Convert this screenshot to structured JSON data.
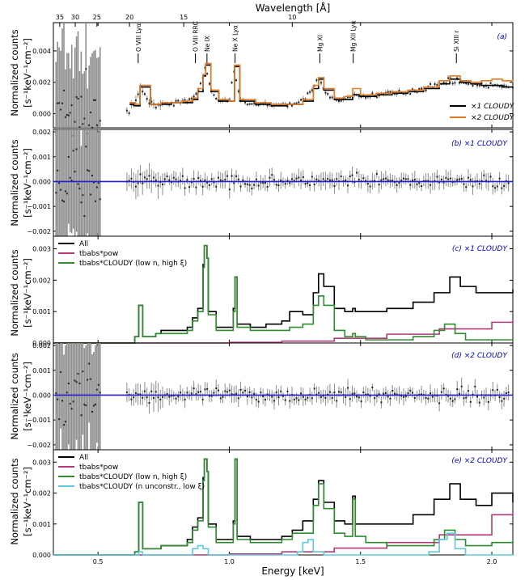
{
  "figure": {
    "top_axis_title": "Wavelength [Å]",
    "bottom_axis_title": "Energy [keV]",
    "y_axis_label_line1": "Normalized counts",
    "y_axis_label_line2": "[s⁻¹keV⁻¹cm⁻²]"
  },
  "colors": {
    "data": "#222222",
    "errorbar": "#8c8c8c",
    "model_x1": "#000000",
    "model_x2": "#e07b28",
    "zero_line": "#1f1fd6",
    "all": "#000000",
    "powerlaw": "#b23a7a",
    "cloudy_high": "#2e8b2e",
    "cloudy_low": "#5ec8de"
  },
  "chart_data": [
    {
      "panel": "a",
      "type": "line",
      "tag": "(a)",
      "xlim": [
        0.33,
        2.08
      ],
      "ylim": [
        -0.0009,
        0.0058
      ],
      "yticks": [
        0.0,
        0.002,
        0.004
      ],
      "ytick_labels": [
        "0.000",
        "0.002",
        "0.004"
      ],
      "top_axis": {
        "wavelength_ticks": [
          35,
          30,
          25,
          20,
          15,
          10
        ],
        "wavelength_labels": [
          "35",
          "30",
          "25",
          "20",
          "15",
          "10"
        ]
      },
      "line_ids": [
        {
          "label": "O VIII Lyα",
          "energy": 0.653
        },
        {
          "label": "O VIII RRC",
          "energy": 0.871
        },
        {
          "label": "Ne IX",
          "energy": 0.915
        },
        {
          "label": "Ne X Lyα",
          "energy": 1.022
        },
        {
          "label": "Mg XI",
          "energy": 1.345
        },
        {
          "label": "Mg XII Lyα",
          "energy": 1.472
        },
        {
          "label": "Si XIII r",
          "energy": 1.865
        }
      ],
      "legend": [
        {
          "label": "×1 CLOUDY",
          "color_key": "model_x1"
        },
        {
          "label": "×2 CLOUDY",
          "color_key": "model_x2"
        }
      ],
      "series": [
        {
          "name": "×1 CLOUDY",
          "x": [
            0.62,
            0.64,
            0.66,
            0.7,
            0.74,
            0.78,
            0.82,
            0.86,
            0.88,
            0.9,
            0.91,
            0.93,
            0.96,
            1.0,
            1.02,
            1.04,
            1.1,
            1.16,
            1.22,
            1.28,
            1.32,
            1.34,
            1.36,
            1.4,
            1.44,
            1.47,
            1.5,
            1.56,
            1.62,
            1.68,
            1.74,
            1.8,
            1.84,
            1.88,
            1.92,
            1.96,
            2.0,
            2.04,
            2.08
          ],
          "y": [
            0.0006,
            0.0005,
            0.0017,
            0.0006,
            0.0006,
            0.0007,
            0.0007,
            0.0009,
            0.0014,
            0.0024,
            0.0031,
            0.0014,
            0.0008,
            0.0008,
            0.003,
            0.0008,
            0.0006,
            0.0005,
            0.0006,
            0.0008,
            0.0016,
            0.0022,
            0.0015,
            0.0009,
            0.0009,
            0.0012,
            0.0011,
            0.0012,
            0.0013,
            0.0014,
            0.0016,
            0.0019,
            0.0022,
            0.002,
            0.0019,
            0.0018,
            0.0018,
            0.0017,
            0.0016
          ]
        },
        {
          "name": "×2 CLOUDY",
          "x": [
            0.62,
            0.64,
            0.66,
            0.7,
            0.74,
            0.78,
            0.82,
            0.86,
            0.88,
            0.9,
            0.91,
            0.93,
            0.96,
            1.0,
            1.02,
            1.04,
            1.1,
            1.16,
            1.22,
            1.28,
            1.32,
            1.34,
            1.36,
            1.4,
            1.44,
            1.47,
            1.5,
            1.56,
            1.62,
            1.68,
            1.74,
            1.8,
            1.84,
            1.88,
            1.92,
            1.96,
            2.0,
            2.04,
            2.08
          ],
          "y": [
            0.0007,
            0.0006,
            0.0018,
            0.0006,
            0.0007,
            0.0007,
            0.0008,
            0.001,
            0.0016,
            0.0025,
            0.0032,
            0.0015,
            0.0009,
            0.0008,
            0.0031,
            0.0009,
            0.0007,
            0.0006,
            0.0006,
            0.0009,
            0.0018,
            0.0023,
            0.0016,
            0.001,
            0.0011,
            0.0016,
            0.0012,
            0.0013,
            0.0014,
            0.0015,
            0.0017,
            0.0021,
            0.0024,
            0.0021,
            0.002,
            0.0021,
            0.0022,
            0.0021,
            0.002
          ]
        }
      ]
    },
    {
      "panel": "b",
      "type": "scatter",
      "tag": "(b) ×1 CLOUDY",
      "xlim": [
        0.33,
        2.08
      ],
      "ylim": [
        -0.0022,
        0.0021
      ],
      "yticks": [
        -0.002,
        -0.001,
        0.0,
        0.001,
        0.002
      ],
      "ytick_labels": [
        "−0.002",
        "−0.001",
        "0.000",
        "0.001",
        "0.002"
      ],
      "zero_line": true
    },
    {
      "panel": "c",
      "type": "line",
      "tag": "(c) ×1 CLOUDY",
      "xlim": [
        0.33,
        2.08
      ],
      "ylim": [
        0.0,
        0.0034
      ],
      "yticks": [
        0.0,
        0.001,
        0.002,
        0.003
      ],
      "ytick_labels": [
        "0.000",
        "0.001",
        "0.002",
        "0.003"
      ],
      "legend": [
        {
          "label": "All",
          "color_key": "all"
        },
        {
          "label": "tbabs*pow",
          "color_key": "powerlaw"
        },
        {
          "label": "tbabs*CLOUDY (low n, high ξ)",
          "color_key": "cloudy_high"
        }
      ],
      "series": [
        {
          "name": "All",
          "x": [
            0.33,
            0.6,
            0.64,
            0.655,
            0.67,
            0.72,
            0.74,
            0.8,
            0.84,
            0.86,
            0.88,
            0.9,
            0.905,
            0.915,
            0.92,
            0.95,
            1.0,
            1.015,
            1.022,
            1.03,
            1.08,
            1.14,
            1.2,
            1.23,
            1.28,
            1.32,
            1.34,
            1.36,
            1.4,
            1.44,
            1.47,
            1.48,
            1.52,
            1.6,
            1.7,
            1.78,
            1.84,
            1.88,
            1.94,
            2.0,
            2.08
          ],
          "y": [
            0.0,
            0.0,
            0.0002,
            0.0012,
            0.0002,
            0.0003,
            0.0004,
            0.0004,
            0.0005,
            0.0008,
            0.0011,
            0.0025,
            0.0031,
            0.0027,
            0.001,
            0.0005,
            0.0005,
            0.0011,
            0.0021,
            0.0006,
            0.0005,
            0.0006,
            0.0007,
            0.001,
            0.0009,
            0.0016,
            0.0022,
            0.0018,
            0.0011,
            0.001,
            0.0011,
            0.001,
            0.001,
            0.0011,
            0.0013,
            0.0016,
            0.0021,
            0.0018,
            0.0016,
            0.0016,
            0.0017
          ]
        },
        {
          "name": "tbabs*pow",
          "x": [
            0.33,
            0.6,
            0.8,
            1.0,
            1.2,
            1.4,
            1.6,
            1.8,
            2.0,
            2.08
          ],
          "y": [
            0.0,
            0.0,
            0.0,
            2e-05,
            6e-05,
            0.00015,
            0.00028,
            0.00045,
            0.00066,
            0.00075
          ]
        },
        {
          "name": "tbabs*CLOUDY (low n, high ξ)",
          "x": [
            0.33,
            0.6,
            0.64,
            0.655,
            0.67,
            0.72,
            0.74,
            0.8,
            0.84,
            0.86,
            0.88,
            0.9,
            0.905,
            0.915,
            0.92,
            0.95,
            1.0,
            1.015,
            1.022,
            1.03,
            1.08,
            1.14,
            1.2,
            1.23,
            1.28,
            1.32,
            1.34,
            1.36,
            1.4,
            1.44,
            1.47,
            1.48,
            1.52,
            1.6,
            1.7,
            1.78,
            1.82,
            1.86,
            1.9,
            2.0,
            2.08
          ],
          "y": [
            0.0,
            0.0,
            0.0002,
            0.0012,
            0.0002,
            0.0003,
            0.0003,
            0.0003,
            0.0004,
            0.0007,
            0.001,
            0.0024,
            0.0031,
            0.0027,
            0.0009,
            0.0004,
            0.0004,
            0.001,
            0.0021,
            0.0005,
            0.0004,
            0.0004,
            0.0004,
            0.0005,
            0.0006,
            0.0012,
            0.0015,
            0.0012,
            0.0004,
            0.0002,
            0.0003,
            0.0002,
            0.0001,
            0.0001,
            0.0002,
            0.0004,
            0.0006,
            0.0003,
            0.0001,
            0.0001,
            0.0001
          ]
        }
      ]
    },
    {
      "panel": "d",
      "type": "scatter",
      "tag": "(d) ×2 CLOUDY",
      "xlim": [
        0.33,
        2.08
      ],
      "ylim": [
        -0.0022,
        0.0021
      ],
      "yticks": [
        -0.002,
        -0.001,
        0.0,
        0.001,
        0.002
      ],
      "ytick_labels": [
        "−0.002",
        "−0.001",
        "0.000",
        "0.001",
        "0.002"
      ],
      "zero_line": true
    },
    {
      "panel": "e",
      "type": "line",
      "tag": "(e) ×2 CLOUDY",
      "xlim": [
        0.33,
        2.08
      ],
      "ylim": [
        0.0,
        0.0034
      ],
      "yticks": [
        0.0,
        0.001,
        0.002,
        0.003
      ],
      "ytick_labels": [
        "0.000",
        "0.001",
        "0.002",
        "0.003"
      ],
      "xticks": [
        0.5,
        1.0,
        1.5,
        2.0
      ],
      "xtick_labels": [
        "0.5",
        "1.0",
        "1.5",
        "2.0"
      ],
      "legend": [
        {
          "label": "All",
          "color_key": "all"
        },
        {
          "label": "tbabs*pow",
          "color_key": "powerlaw"
        },
        {
          "label": "tbabs*CLOUDY (low n, high ξ)",
          "color_key": "cloudy_high"
        },
        {
          "label": "tbabs*CLOUDY (n unconstr., low ξ)",
          "color_key": "cloudy_low"
        }
      ],
      "series": [
        {
          "name": "All",
          "x": [
            0.33,
            0.6,
            0.64,
            0.655,
            0.67,
            0.72,
            0.74,
            0.8,
            0.84,
            0.86,
            0.88,
            0.9,
            0.905,
            0.915,
            0.92,
            0.95,
            1.0,
            1.015,
            1.022,
            1.03,
            1.08,
            1.14,
            1.2,
            1.24,
            1.28,
            1.32,
            1.34,
            1.36,
            1.4,
            1.44,
            1.47,
            1.48,
            1.52,
            1.6,
            1.7,
            1.78,
            1.84,
            1.88,
            1.94,
            2.0,
            2.08
          ],
          "y": [
            0.0,
            0.0,
            0.0001,
            0.0017,
            0.0002,
            0.0002,
            0.0003,
            0.0003,
            0.0005,
            0.0009,
            0.0012,
            0.0025,
            0.0031,
            0.0027,
            0.001,
            0.0005,
            0.0005,
            0.0011,
            0.0031,
            0.0006,
            0.0005,
            0.0005,
            0.0006,
            0.0008,
            0.0011,
            0.0018,
            0.0024,
            0.0017,
            0.0011,
            0.001,
            0.0019,
            0.001,
            0.001,
            0.001,
            0.0013,
            0.0018,
            0.0023,
            0.0018,
            0.0016,
            0.002,
            0.0017
          ]
        },
        {
          "name": "tbabs*pow",
          "x": [
            0.33,
            0.6,
            0.8,
            1.0,
            1.2,
            1.4,
            1.6,
            1.8,
            2.0,
            2.08
          ],
          "y": [
            0.0,
            0.0,
            0.0,
            3e-05,
            0.0001,
            0.00022,
            0.0004,
            0.00065,
            0.0013,
            0.0014
          ]
        },
        {
          "name": "tbabs*CLOUDY (low n, high ξ)",
          "x": [
            0.33,
            0.6,
            0.64,
            0.655,
            0.67,
            0.72,
            0.74,
            0.8,
            0.84,
            0.86,
            0.88,
            0.9,
            0.905,
            0.915,
            0.92,
            0.95,
            1.0,
            1.015,
            1.022,
            1.03,
            1.08,
            1.14,
            1.2,
            1.24,
            1.28,
            1.32,
            1.34,
            1.36,
            1.4,
            1.44,
            1.47,
            1.48,
            1.52,
            1.6,
            1.7,
            1.78,
            1.82,
            1.86,
            1.9,
            2.0,
            2.08
          ],
          "y": [
            0.0,
            0.0,
            0.0001,
            0.0017,
            0.0002,
            0.0002,
            0.0003,
            0.0003,
            0.0004,
            0.0008,
            0.0011,
            0.0024,
            0.0031,
            0.0027,
            0.0009,
            0.0004,
            0.0004,
            0.001,
            0.0031,
            0.0005,
            0.0004,
            0.0004,
            0.0005,
            0.0007,
            0.0007,
            0.0016,
            0.0023,
            0.0015,
            0.0007,
            0.0006,
            0.0018,
            0.0006,
            0.0004,
            0.0003,
            0.0003,
            0.0005,
            0.0008,
            0.0005,
            0.0003,
            0.0004,
            0.0003
          ]
        },
        {
          "name": "tbabs*CLOUDY (n unconstr., low ξ)",
          "x": [
            0.33,
            0.64,
            0.655,
            0.67,
            0.84,
            0.86,
            0.88,
            0.9,
            0.92,
            1.0,
            1.2,
            1.26,
            1.28,
            1.3,
            1.32,
            1.36,
            1.7,
            1.76,
            1.8,
            1.83,
            1.86,
            1.9,
            2.08
          ],
          "y": [
            0.0,
            0.0,
            0.0001,
            0.0,
            0.0,
            0.0002,
            0.0003,
            0.0002,
            0.0,
            0.0,
            0.0,
            0.0001,
            0.0004,
            0.0005,
            0.0001,
            0.0,
            0.0,
            0.0001,
            0.0005,
            0.0007,
            0.0002,
            0.0,
            0.0
          ]
        }
      ]
    }
  ]
}
